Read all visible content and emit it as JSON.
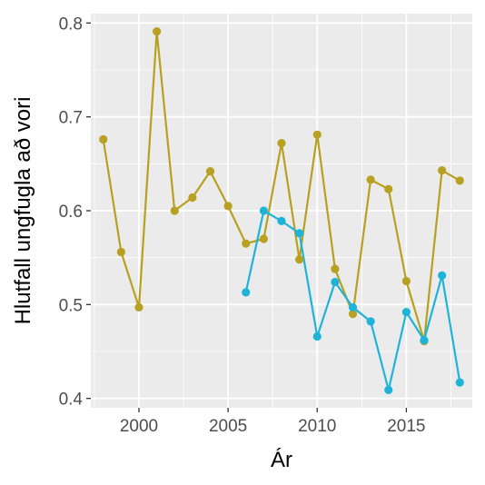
{
  "chart_data": {
    "type": "line",
    "xlabel": "Ár",
    "ylabel": "Hlutfall ungfugla að vori",
    "xlim": [
      1997.3,
      2018.7
    ],
    "ylim": [
      0.39,
      0.81
    ],
    "x_ticks": [
      2000,
      2005,
      2010,
      2015
    ],
    "y_ticks": [
      0.4,
      0.5,
      0.6,
      0.7,
      0.8
    ],
    "y_tick_labels": [
      "0.4",
      "0.5",
      "0.6",
      "0.7",
      "0.8"
    ],
    "grid": true,
    "legend": "none",
    "panel_background": "#ebebeb",
    "series": [
      {
        "color": "#b8a020",
        "x": [
          1998,
          1999,
          2000,
          2001,
          2002,
          2003,
          2004,
          2005,
          2006,
          2007,
          2008,
          2009,
          2010,
          2011,
          2012,
          2013,
          2014,
          2015,
          2016,
          2017,
          2018
        ],
        "values": [
          0.676,
          0.556,
          0.497,
          0.791,
          0.6,
          0.614,
          0.642,
          0.605,
          0.565,
          0.57,
          0.672,
          0.548,
          0.681,
          0.538,
          0.49,
          0.633,
          0.623,
          0.525,
          0.461,
          0.643,
          0.632
        ]
      },
      {
        "color": "#1eb4d8",
        "x": [
          2006,
          2007,
          2008,
          2009,
          2010,
          2011,
          2012,
          2013,
          2014,
          2015,
          2016,
          2017,
          2018
        ],
        "values": [
          0.513,
          0.6,
          0.589,
          0.576,
          0.466,
          0.524,
          0.497,
          0.482,
          0.409,
          0.492,
          0.462,
          0.531,
          0.417
        ]
      }
    ]
  }
}
